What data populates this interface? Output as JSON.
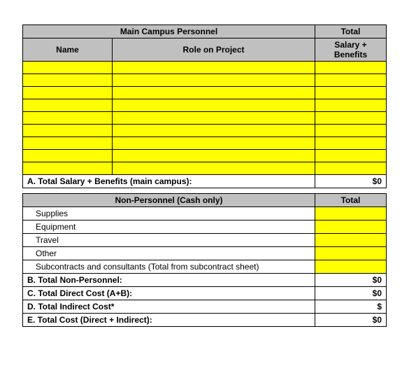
{
  "section1": {
    "title": "Main Campus Personnel",
    "total_label": "Total",
    "col_name": "Name",
    "col_role": "Role on Project",
    "col_salary": "Salary + Benefits",
    "empty_rows": 9,
    "row_a_label": "A. Total Salary + Benefits (main campus):",
    "row_a_value": "$0"
  },
  "section2": {
    "title": "Non-Personnel (Cash only)",
    "total_label": "Total",
    "items": [
      {
        "label": "Supplies"
      },
      {
        "label": "Equipment"
      },
      {
        "label": "Travel"
      },
      {
        "label": "Other"
      },
      {
        "label": "Subcontracts and consultants (Total from subcontract sheet)"
      }
    ],
    "totals": [
      {
        "label": "B. Total Non-Personnel:",
        "value": "$0"
      },
      {
        "label": "C. Total Direct Cost (A+B):",
        "value": "$0"
      },
      {
        "label": "D. Total Indirect Cost*",
        "value": "$"
      },
      {
        "label": "E. Total Cost (Direct + Indirect):",
        "value": "$0"
      }
    ]
  },
  "colors": {
    "header_bg": "#c0c0c0",
    "input_bg": "#ffff00",
    "border": "#000000"
  }
}
